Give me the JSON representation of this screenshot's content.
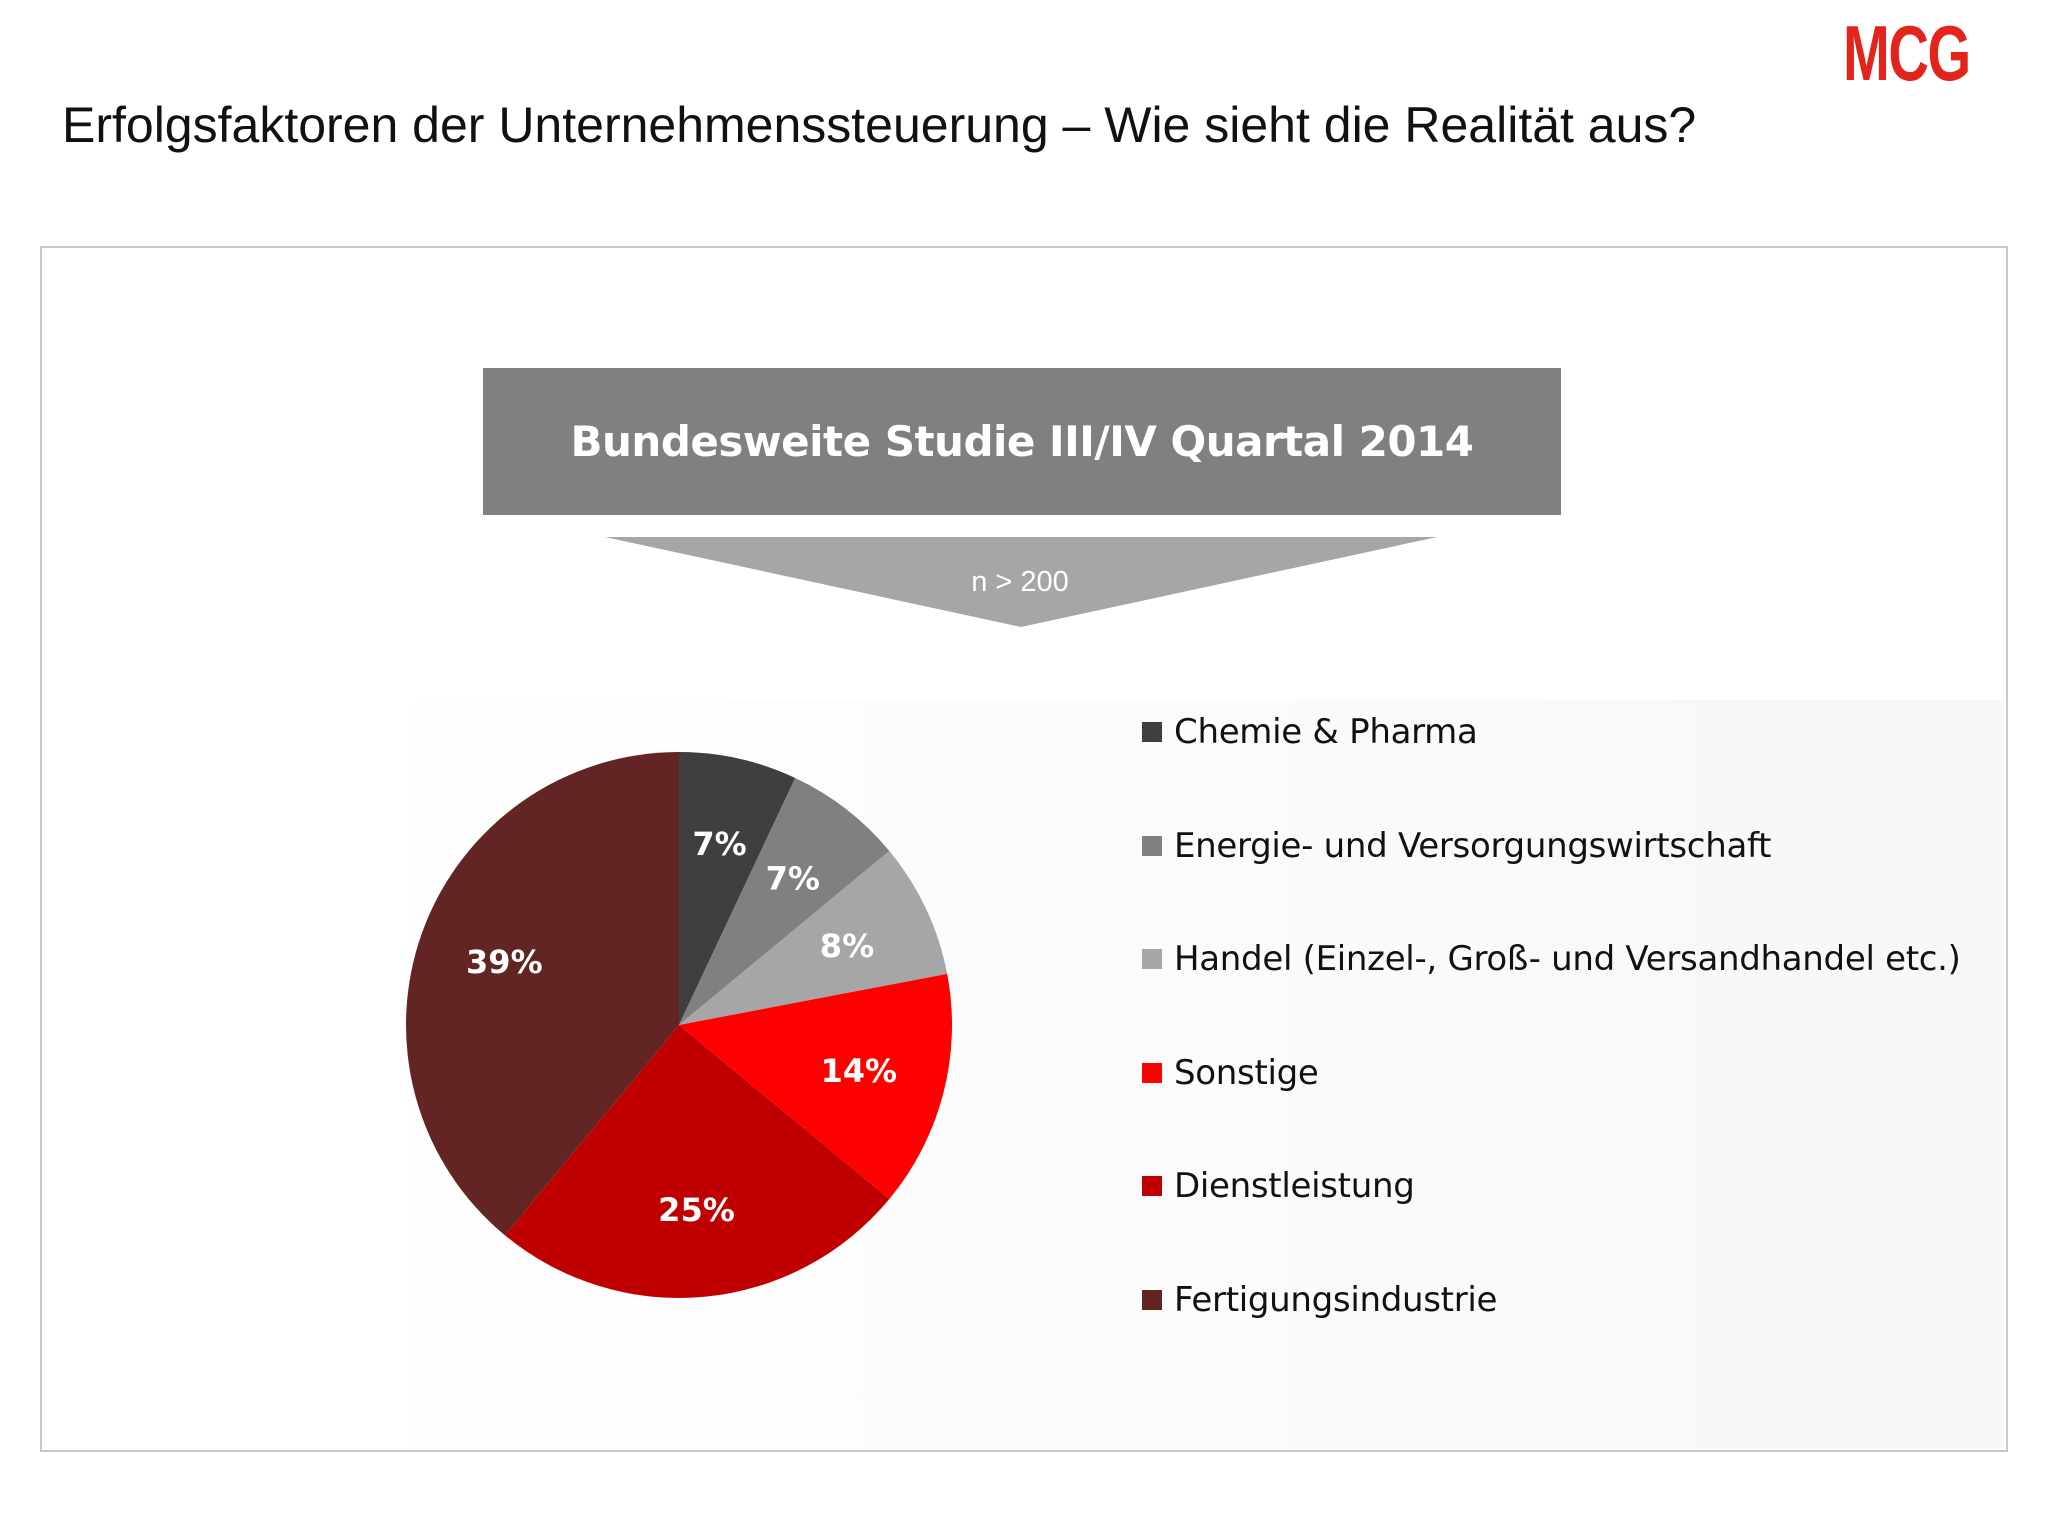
{
  "header": {
    "logo_text": "MCG",
    "title": "Erfolgsfaktoren der Unternehmenssteuerung – Wie sieht die Realität aus?"
  },
  "banner": {
    "title": "Bundesweite Studie III/IV Quartal 2014",
    "sample_size": "n > 200"
  },
  "colors": {
    "brand": "#e3241b",
    "banner": "#808080",
    "arrow": "#a6a6a6"
  },
  "chart_data": {
    "type": "pie",
    "title": "Bundesweite Studie III/IV Quartal 2014",
    "start_angle_deg": 0,
    "direction": "clockwise",
    "legend_position": "right",
    "slices": [
      {
        "label": "Chemie & Pharma",
        "value": 7,
        "display": "7%",
        "color": "#403e3f"
      },
      {
        "label": "Energie- und Versorgungswirtschaft",
        "value": 7,
        "display": "7%",
        "color": "#808080"
      },
      {
        "label": "Handel (Einzel-, Groß- und Versandhandel etc.)",
        "value": 8,
        "display": "8%",
        "color": "#a6a6a6"
      },
      {
        "label": "Sonstige",
        "value": 14,
        "display": "14%",
        "color": "#ff0000"
      },
      {
        "label": "Dienstleistung",
        "value": 25,
        "display": "25%",
        "color": "#c00000"
      },
      {
        "label": "Fertigungsindustrie",
        "value": 39,
        "display": "39%",
        "color": "#632523"
      }
    ]
  }
}
